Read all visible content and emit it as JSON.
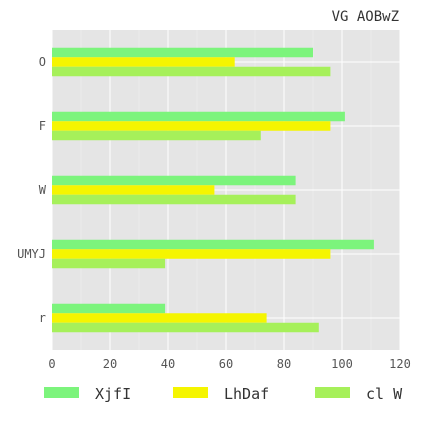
{
  "chart_data": {
    "type": "bar",
    "orientation": "horizontal",
    "title": "VG AOBwZ",
    "xlabel": "",
    "ylabel": "",
    "categories": [
      "O",
      "F",
      "W",
      "UMYJ",
      "r"
    ],
    "series": [
      {
        "name": "XjfI",
        "color": "#7cf47c",
        "values": [
          90,
          101,
          84,
          111,
          39
        ]
      },
      {
        "name": "LhDaf",
        "color": "#f5f500",
        "values": [
          63,
          96,
          56,
          96,
          74
        ]
      },
      {
        "name": "cl W",
        "color": "#a6f05a",
        "values": [
          96,
          72,
          84,
          39,
          92
        ]
      }
    ],
    "xlim": [
      0,
      120
    ],
    "xticks": [
      "0",
      "20",
      "40",
      "60",
      "80",
      "100",
      "120"
    ],
    "grid": true,
    "legend_position": "bottom",
    "background": "#e5e5e5"
  }
}
